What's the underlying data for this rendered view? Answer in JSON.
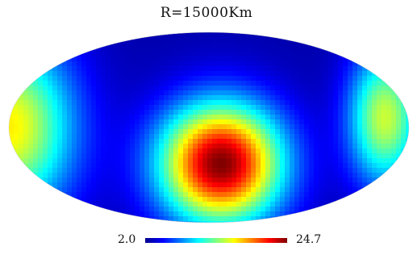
{
  "chart_data": {
    "type": "heatmap",
    "projection": "mollweide",
    "title": "R=15000Km",
    "colormap": "jet",
    "colorbar": {
      "min_label": "2.0",
      "max_label": "24.7",
      "min": 2.0,
      "max": 24.7
    },
    "features": [
      {
        "name": "central hotspot",
        "lon_deg": 0,
        "lat_deg": -10,
        "peak": 24.7
      },
      {
        "name": "left lobe",
        "lon_deg": -165,
        "lat_deg": 0,
        "value": 17
      },
      {
        "name": "right lobe",
        "lon_deg": 155,
        "lat_deg": 10,
        "value": 16
      }
    ]
  }
}
